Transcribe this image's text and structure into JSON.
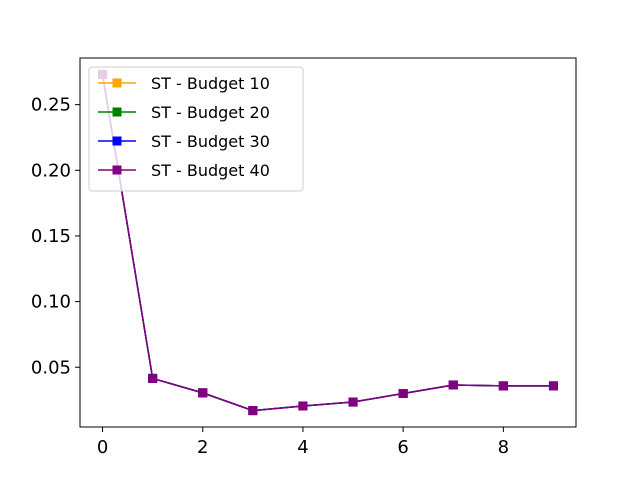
{
  "chart_data": {
    "type": "line",
    "x": [
      0,
      1,
      2,
      3,
      4,
      5,
      6,
      7,
      8,
      9
    ],
    "xlim": [
      -0.45,
      9.45
    ],
    "ylim": [
      0.0045,
      0.2855
    ],
    "xticks": [
      0,
      2,
      4,
      6,
      8
    ],
    "yticks": [
      0.05,
      0.1,
      0.15,
      0.2,
      0.25
    ],
    "xtick_labels": [
      "0",
      "2",
      "4",
      "6",
      "8"
    ],
    "ytick_labels": [
      "0.05",
      "0.10",
      "0.15",
      "0.20",
      "0.25"
    ],
    "legend_position": "upper-left",
    "grid": false,
    "series": [
      {
        "name": "ST - Budget 10",
        "color": "#ffa500",
        "marker": "square",
        "values": [
          0.273,
          0.0415,
          0.0305,
          0.017,
          0.0205,
          0.0235,
          0.03,
          0.0365,
          0.0358,
          0.0358
        ]
      },
      {
        "name": "ST - Budget 20",
        "color": "#008000",
        "marker": "square",
        "values": [
          0.273,
          0.0415,
          0.0305,
          0.017,
          0.0205,
          0.0235,
          0.03,
          0.0365,
          0.0358,
          0.0358
        ]
      },
      {
        "name": "ST - Budget 30",
        "color": "#0000ff",
        "marker": "square",
        "values": [
          0.273,
          0.0415,
          0.0305,
          0.017,
          0.0205,
          0.0235,
          0.03,
          0.0365,
          0.0358,
          0.0358
        ]
      },
      {
        "name": "ST - Budget 40",
        "color": "#800080",
        "marker": "square",
        "values": [
          0.273,
          0.0415,
          0.0305,
          0.017,
          0.0205,
          0.0235,
          0.03,
          0.0365,
          0.0358,
          0.0358
        ]
      }
    ]
  }
}
